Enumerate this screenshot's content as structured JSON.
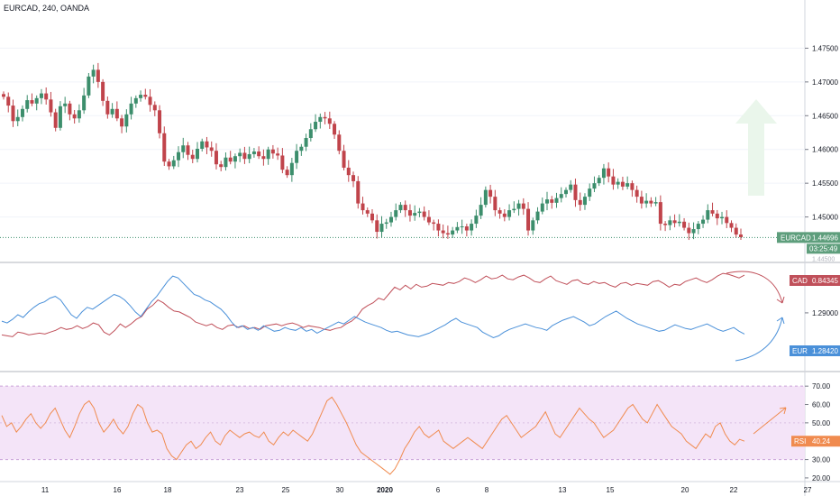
{
  "header": {
    "title": "EURCAD, 240, OANDA"
  },
  "chart_data": [
    {
      "type": "candlestick",
      "symbol": "EURCAD",
      "y_ticks": [
        "1.47500",
        "1.47000",
        "1.46500",
        "1.46000",
        "1.45500",
        "1.45000"
      ],
      "ylim": [
        1.4438,
        1.48
      ],
      "price_labels": {
        "symbol": "EURCAD",
        "last": "1.44696",
        "countdown": "03:25:49",
        "hidden_tick": "1.44500"
      },
      "close": [
        1.4678,
        1.4665,
        1.4642,
        1.4648,
        1.466,
        1.4673,
        1.4668,
        1.4676,
        1.4683,
        1.4674,
        1.4655,
        1.4632,
        1.4664,
        1.4668,
        1.4652,
        1.4646,
        1.4658,
        1.468,
        1.4708,
        1.4718,
        1.47,
        1.4672,
        1.4652,
        1.466,
        1.4646,
        1.4634,
        1.4652,
        1.4668,
        1.4676,
        1.4681,
        1.4678,
        1.4666,
        1.4658,
        1.4624,
        1.4582,
        1.4575,
        1.4584,
        1.4596,
        1.4606,
        1.4592,
        1.4586,
        1.4601,
        1.4612,
        1.4603,
        1.4598,
        1.4578,
        1.4574,
        1.4588,
        1.4582,
        1.459,
        1.4595,
        1.4586,
        1.4593,
        1.4597,
        1.459,
        1.4586,
        1.46,
        1.4594,
        1.4591,
        1.457,
        1.4562,
        1.458,
        1.4598,
        1.4604,
        1.4617,
        1.463,
        1.4641,
        1.4648,
        1.4646,
        1.4638,
        1.4622,
        1.4598,
        1.4573,
        1.4562,
        1.4553,
        1.452,
        1.451,
        1.4505,
        1.4495,
        1.4478,
        1.449,
        1.4492,
        1.45,
        1.451,
        1.4518,
        1.451,
        1.4502,
        1.4506,
        1.4508,
        1.45,
        1.4492,
        1.449,
        1.448,
        1.4476,
        1.4474,
        1.448,
        1.4485,
        1.4486,
        1.448,
        1.449,
        1.4502,
        1.4518,
        1.454,
        1.453,
        1.451,
        1.4505,
        1.45,
        1.451,
        1.4512,
        1.452,
        1.4512,
        1.448,
        1.4495,
        1.4508,
        1.452,
        1.4526,
        1.4521,
        1.4528,
        1.4534,
        1.454,
        1.4548,
        1.4525,
        1.4518,
        1.453,
        1.4542,
        1.455,
        1.4558,
        1.4572,
        1.456,
        1.4548,
        1.4552,
        1.4545,
        1.455,
        1.454,
        1.453,
        1.452,
        1.4524,
        1.452,
        1.4522,
        1.449,
        1.4488,
        1.4495,
        1.4491,
        1.4493,
        1.4484,
        1.4476,
        1.4482,
        1.449,
        1.4496,
        1.451,
        1.4505,
        1.4498,
        1.45,
        1.4491,
        1.4484,
        1.4474,
        1.447
      ],
      "current_price": 1.44696
    },
    {
      "type": "line",
      "y_ticks": [
        "1.29000"
      ],
      "series": [
        {
          "name": "CAD",
          "color": "#c0505a",
          "last_label": "0.84345",
          "values": [
            30,
            29,
            28,
            33,
            32,
            30,
            31,
            32,
            31,
            33,
            35,
            38,
            36,
            37,
            40,
            37,
            39,
            43,
            41,
            33,
            30,
            35,
            42,
            38,
            42,
            47,
            50,
            58,
            62,
            68,
            65,
            60,
            56,
            55,
            52,
            49,
            44,
            42,
            40,
            42,
            38,
            36,
            40,
            41,
            38,
            40,
            37,
            38,
            36,
            40,
            41,
            42,
            40,
            42,
            43,
            41,
            38,
            40,
            39,
            38,
            36,
            35,
            37,
            38,
            42,
            45,
            50,
            58,
            62,
            65,
            70,
            68,
            75,
            82,
            79,
            84,
            80,
            85,
            82,
            83,
            86,
            85,
            84,
            87,
            86,
            88,
            92,
            90,
            87,
            90,
            94,
            91,
            92,
            95,
            91,
            90,
            93,
            95,
            92,
            88,
            87,
            91,
            94,
            89,
            87,
            85,
            89,
            90,
            86,
            85,
            88,
            86,
            87,
            84,
            82,
            86,
            87,
            84,
            86,
            85,
            84,
            88,
            89,
            86,
            82,
            85,
            84,
            88,
            90,
            92,
            89,
            87,
            90,
            94,
            97,
            96,
            94,
            92,
            95
          ]
        },
        {
          "name": "EUR",
          "color": "#4a90d9",
          "last_label": "1.28420",
          "values": [
            45,
            43,
            47,
            52,
            49,
            55,
            60,
            64,
            66,
            70,
            72,
            68,
            60,
            52,
            48,
            55,
            60,
            58,
            62,
            66,
            70,
            74,
            72,
            68,
            62,
            55,
            50,
            58,
            66,
            72,
            80,
            88,
            94,
            92,
            86,
            80,
            74,
            72,
            68,
            66,
            62,
            58,
            52,
            44,
            38,
            40,
            36,
            38,
            35,
            40,
            37,
            34,
            35,
            38,
            36,
            35,
            38,
            34,
            36,
            32,
            35,
            38,
            41,
            44,
            42,
            46,
            50,
            47,
            44,
            42,
            40,
            38,
            35,
            33,
            34,
            32,
            30,
            29,
            28,
            30,
            32,
            35,
            38,
            41,
            45,
            48,
            44,
            42,
            40,
            38,
            33,
            30,
            27,
            29,
            33,
            36,
            38,
            40,
            42,
            40,
            38,
            37,
            35,
            40,
            43,
            46,
            48,
            50,
            47,
            44,
            40,
            42,
            46,
            50,
            53,
            56,
            52,
            48,
            45,
            42,
            40,
            38,
            36,
            34,
            35,
            38,
            41,
            39,
            37,
            36,
            38,
            40,
            42,
            39,
            36,
            34,
            36,
            38,
            34,
            31
          ]
        }
      ]
    },
    {
      "type": "line",
      "y_ticks": [
        "70.00",
        "60.00",
        "50.00",
        "40.00",
        "30.00",
        "20.00"
      ],
      "ylim": [
        18,
        75
      ],
      "band": [
        30,
        70
      ],
      "series": [
        {
          "name": "RSI",
          "color": "#f08b4f",
          "last_label": "40.24",
          "values": [
            54,
            48,
            50,
            45,
            48,
            52,
            55,
            50,
            47,
            50,
            55,
            58,
            52,
            46,
            42,
            48,
            55,
            60,
            62,
            58,
            50,
            45,
            48,
            52,
            47,
            44,
            48,
            55,
            60,
            58,
            50,
            45,
            46,
            44,
            36,
            32,
            30,
            34,
            38,
            40,
            36,
            38,
            42,
            45,
            40,
            38,
            43,
            46,
            44,
            42,
            44,
            45,
            43,
            42,
            45,
            40,
            38,
            42,
            45,
            43,
            46,
            44,
            42,
            40,
            44,
            50,
            56,
            62,
            64,
            60,
            55,
            50,
            44,
            38,
            34,
            32,
            30,
            28,
            26,
            24,
            22,
            25,
            30,
            36,
            40,
            45,
            48,
            44,
            42,
            44,
            46,
            40,
            38,
            36,
            38,
            40,
            42,
            40,
            38,
            36,
            40,
            44,
            48,
            52,
            54,
            50,
            46,
            42,
            44,
            46,
            48,
            52,
            56,
            50,
            44,
            42,
            46,
            50,
            54,
            58,
            55,
            52,
            50,
            46,
            42,
            44,
            46,
            50,
            54,
            58,
            60,
            56,
            52,
            50,
            55,
            60,
            56,
            52,
            48,
            46,
            44,
            40,
            38,
            36,
            40,
            44,
            42,
            48,
            50,
            44,
            40,
            38,
            41,
            40
          ]
        }
      ]
    }
  ],
  "x_axis": {
    "labels": [
      "11",
      "16",
      "18",
      "23",
      "25",
      "30",
      "2020",
      "6",
      "8",
      "13",
      "15",
      "20",
      "22",
      "27"
    ]
  }
}
